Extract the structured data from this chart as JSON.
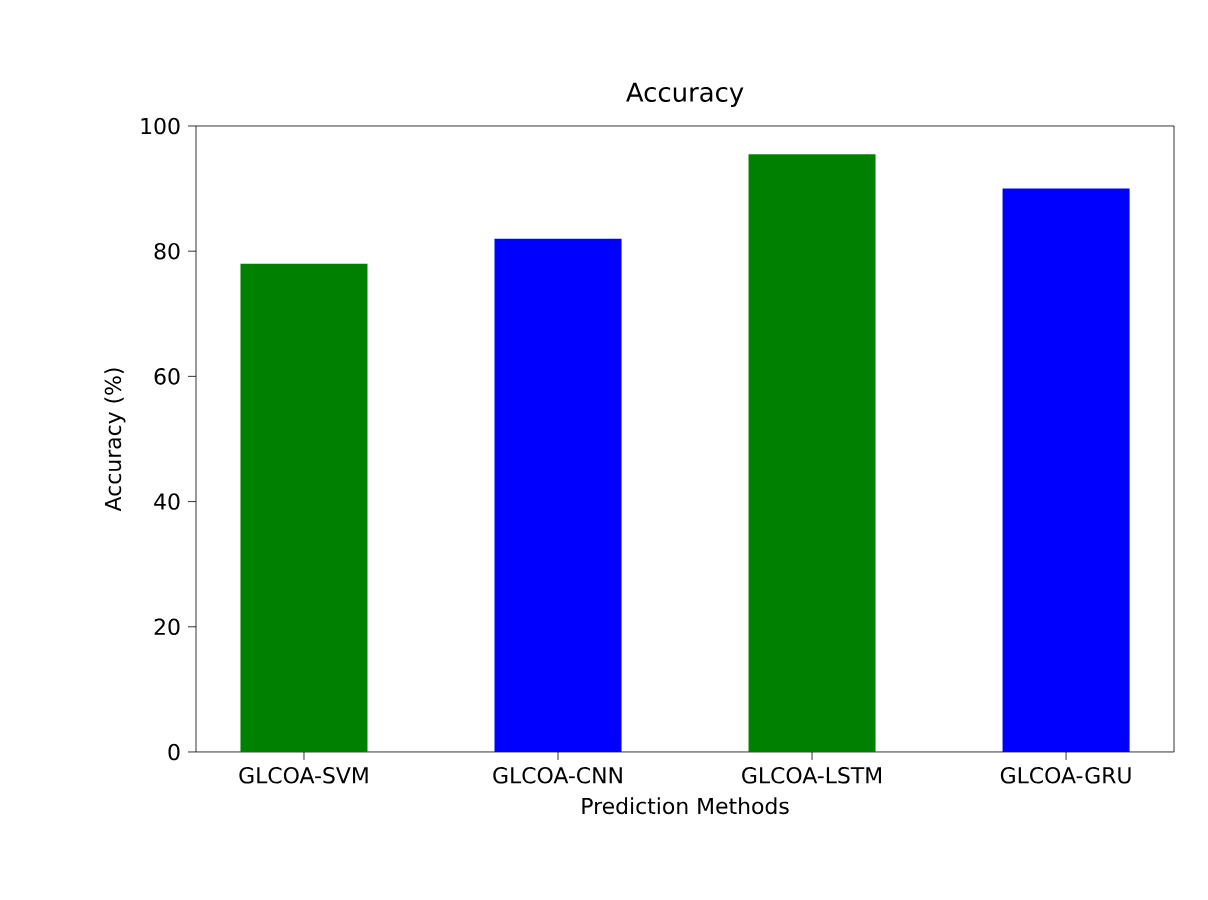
{
  "chart_data": {
    "type": "bar",
    "title": "Accuracy",
    "xlabel": "Prediction Methods",
    "ylabel": "Accuracy (%)",
    "categories": [
      "GLCOA-SVM",
      "GLCOA-CNN",
      "GLCOA-LSTM",
      "GLCOA-GRU"
    ],
    "values": [
      78,
      82,
      95.5,
      90
    ],
    "colors": [
      "#008000",
      "#0000ff",
      "#008000",
      "#0000ff"
    ],
    "ylim": [
      0,
      100
    ],
    "yticks": [
      0,
      20,
      40,
      60,
      80,
      100
    ],
    "grid": false
  }
}
